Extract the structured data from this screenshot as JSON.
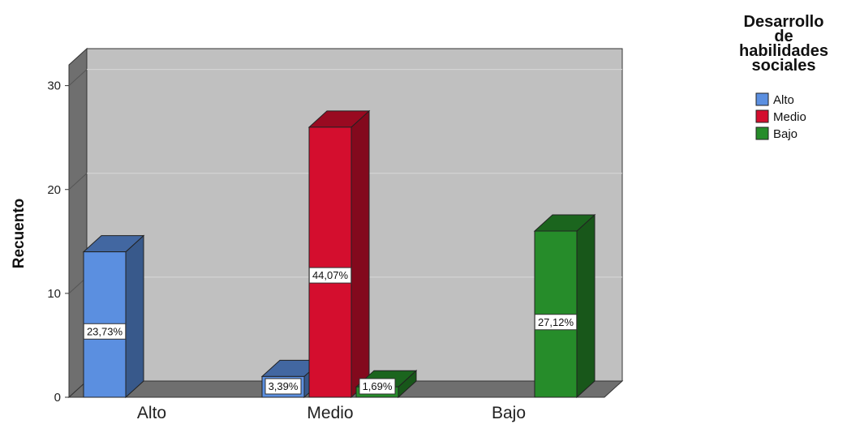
{
  "chart_data": {
    "type": "bar",
    "style": "3d-clustered",
    "categories": [
      "Alto",
      "Medio",
      "Bajo"
    ],
    "series": [
      {
        "name": "Alto",
        "color": "#5b8fe0",
        "values": [
          14,
          2,
          0
        ],
        "labels": [
          "23,73%",
          "3,39%",
          ""
        ]
      },
      {
        "name": "Medio",
        "color": "#d40e2e",
        "values": [
          0,
          26,
          0
        ],
        "labels": [
          "",
          "44,07%",
          ""
        ]
      },
      {
        "name": "Bajo",
        "color": "#268c2a",
        "values": [
          0,
          1,
          16
        ],
        "labels": [
          "",
          "1,69%",
          "27,12%"
        ]
      }
    ],
    "ylabel": "Recuento",
    "xlabel": "",
    "ylim": [
      0,
      32
    ],
    "yticks": [
      0,
      10,
      20,
      30
    ],
    "grid": true,
    "legend": {
      "title_lines": [
        "Desarrollo",
        "de",
        "habilidades",
        "sociales"
      ],
      "position": "top-right"
    },
    "plot_background": "#c0c0c0",
    "wall_color": "#6f6f6f"
  }
}
